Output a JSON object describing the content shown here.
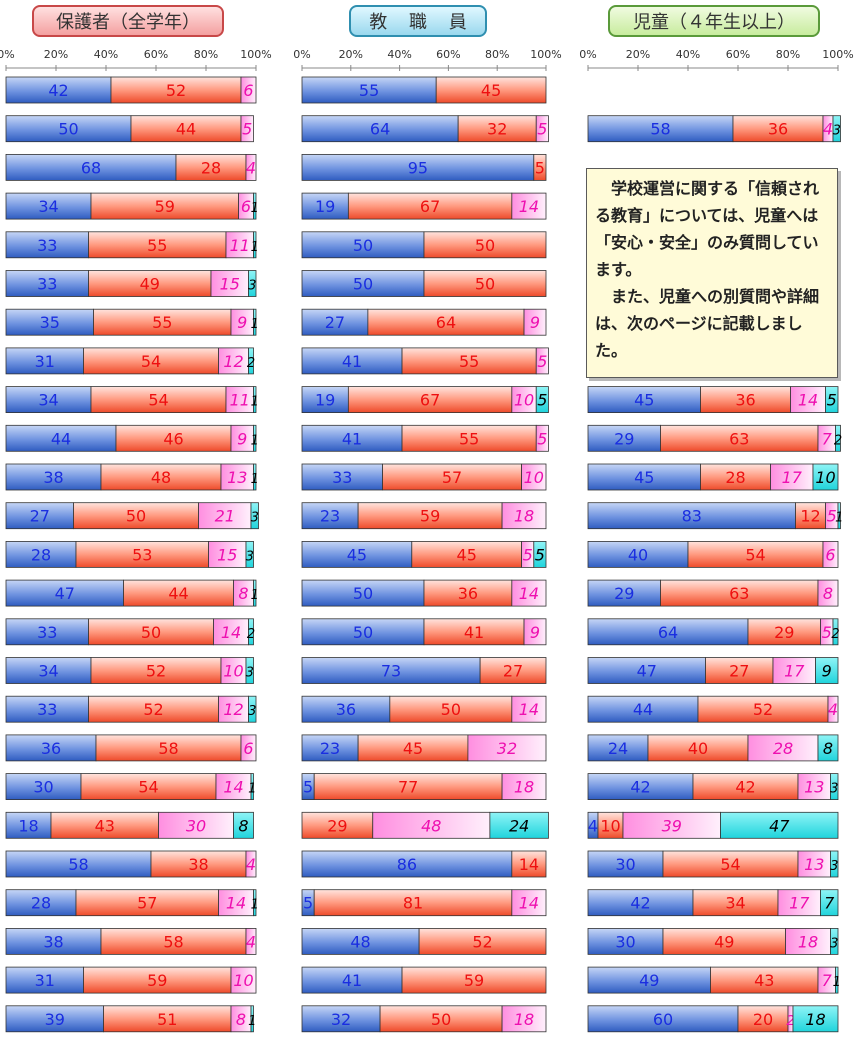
{
  "headers": {
    "parents": "保護者（全学年）",
    "staff": "教 職 員",
    "students": "児童（４年生以上）"
  },
  "note": {
    "line1": "　学校運営に関する「信頼される教育」については、児童へは「安心・安全」のみ質問しています。",
    "line2": "　また、児童への別質問や詳細は、次のページに記載しました。"
  },
  "colors": {
    "seg1": "#3f6fd0",
    "seg2": "#f05a3a",
    "seg3": "#ff9ce6",
    "seg4": "#2ad8e0",
    "label1": "#1a2ee0",
    "label2": "#ee1010",
    "label3": "#ee10b0",
    "label4": "#000000"
  },
  "chart_data": [
    {
      "type": "bar",
      "title": "保護者（全学年）",
      "orientation": "horizontal-stacked-100",
      "xlim": [
        0,
        100
      ],
      "xticks": [
        "0%",
        "20%",
        "40%",
        "60%",
        "80%",
        "100%"
      ],
      "rows": [
        [
          42,
          52,
          6,
          0
        ],
        [
          50,
          44,
          5,
          0
        ],
        [
          68,
          28,
          4,
          0
        ],
        [
          34,
          59,
          6,
          1
        ],
        [
          33,
          55,
          11,
          1
        ],
        [
          33,
          49,
          15,
          3
        ],
        [
          35,
          55,
          9,
          1
        ],
        [
          31,
          54,
          12,
          2
        ],
        [
          34,
          54,
          11,
          1
        ],
        [
          44,
          46,
          9,
          1
        ],
        [
          38,
          48,
          13,
          1
        ],
        [
          27,
          50,
          21,
          3
        ],
        [
          28,
          53,
          15,
          3
        ],
        [
          47,
          44,
          8,
          1
        ],
        [
          33,
          50,
          14,
          2
        ],
        [
          34,
          52,
          10,
          3
        ],
        [
          33,
          52,
          12,
          3
        ],
        [
          36,
          58,
          6,
          0
        ],
        [
          30,
          54,
          14,
          1
        ],
        [
          18,
          43,
          30,
          8
        ],
        [
          58,
          38,
          4,
          0
        ],
        [
          28,
          57,
          14,
          1
        ],
        [
          38,
          58,
          4,
          0
        ],
        [
          31,
          59,
          10,
          0
        ],
        [
          39,
          51,
          8,
          1
        ]
      ]
    },
    {
      "type": "bar",
      "title": "教 職 員",
      "orientation": "horizontal-stacked-100",
      "xlim": [
        0,
        100
      ],
      "xticks": [
        "0%",
        "20%",
        "40%",
        "60%",
        "80%",
        "100%"
      ],
      "rows": [
        [
          55,
          45,
          0,
          0
        ],
        [
          64,
          32,
          5,
          0
        ],
        [
          95,
          5,
          0,
          0
        ],
        [
          19,
          67,
          14,
          0
        ],
        [
          50,
          50,
          0,
          0
        ],
        [
          50,
          50,
          0,
          0
        ],
        [
          27,
          64,
          9,
          0
        ],
        [
          41,
          55,
          5,
          0
        ],
        [
          19,
          67,
          10,
          5
        ],
        [
          41,
          55,
          5,
          0
        ],
        [
          33,
          57,
          10,
          0
        ],
        [
          23,
          59,
          18,
          0
        ],
        [
          45,
          45,
          5,
          5
        ],
        [
          50,
          36,
          14,
          0
        ],
        [
          50,
          41,
          9,
          0
        ],
        [
          73,
          27,
          0,
          0
        ],
        [
          36,
          50,
          14,
          0
        ],
        [
          23,
          45,
          32,
          0
        ],
        [
          5,
          77,
          18,
          0
        ],
        [
          0,
          29,
          48,
          24
        ],
        [
          86,
          14,
          0,
          0
        ],
        [
          5,
          81,
          14,
          0
        ],
        [
          48,
          52,
          0,
          0
        ],
        [
          41,
          59,
          0,
          0
        ],
        [
          32,
          50,
          18,
          0
        ]
      ]
    },
    {
      "type": "bar",
      "title": "児童（４年生以上）",
      "orientation": "horizontal-stacked-100",
      "xlim": [
        0,
        100
      ],
      "xticks": [
        "0%",
        "20%",
        "40%",
        "60%",
        "80%",
        "100%"
      ],
      "rows": [
        null,
        [
          58,
          36,
          4,
          3
        ],
        null,
        null,
        null,
        null,
        null,
        null,
        [
          45,
          36,
          14,
          5
        ],
        [
          29,
          63,
          7,
          2
        ],
        [
          45,
          28,
          17,
          10
        ],
        [
          83,
          12,
          5,
          1
        ],
        [
          40,
          54,
          6,
          0
        ],
        [
          29,
          63,
          8,
          0
        ],
        [
          64,
          29,
          5,
          2
        ],
        [
          47,
          27,
          17,
          9
        ],
        [
          44,
          52,
          4,
          0
        ],
        [
          24,
          40,
          28,
          8
        ],
        [
          42,
          42,
          13,
          3
        ],
        [
          4,
          10,
          39,
          47
        ],
        [
          30,
          54,
          13,
          3
        ],
        [
          42,
          34,
          17,
          7
        ],
        [
          30,
          49,
          18,
          3
        ],
        [
          49,
          43,
          7,
          1
        ],
        [
          60,
          20,
          2,
          18
        ]
      ]
    }
  ]
}
